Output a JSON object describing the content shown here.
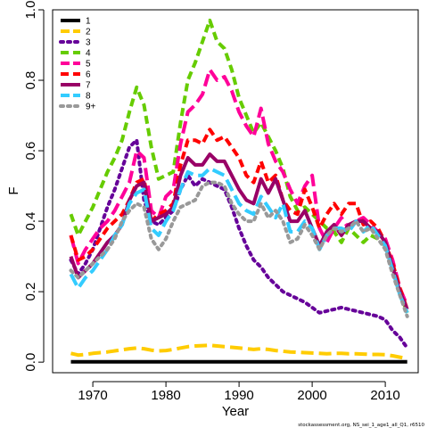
{
  "chart_data": {
    "type": "line",
    "title": "",
    "xlabel": "Year",
    "ylabel": "F",
    "xlim": [
      1964.5,
      2014.5
    ],
    "ylim": [
      -0.03,
      1.0
    ],
    "x_ticks": [
      1970,
      1980,
      1990,
      2000,
      2010
    ],
    "x_tick_labels": [
      "1970",
      "1980",
      "1990",
      "2000",
      "2010"
    ],
    "y_ticks": [
      0.0,
      0.2,
      0.4,
      0.6,
      0.8,
      1.0
    ],
    "y_tick_labels": [
      "0.0",
      "0.2",
      "0.4",
      "0.6",
      "0.8",
      "1.0"
    ],
    "grid": false,
    "legend_position": "top-left",
    "footnote": "stockassessment.org, NS_sei_1_age1_all_Q1, r6510",
    "x": [
      1967,
      1968,
      1969,
      1970,
      1971,
      1972,
      1973,
      1974,
      1975,
      1976,
      1977,
      1978,
      1979,
      1980,
      1981,
      1982,
      1983,
      1984,
      1985,
      1986,
      1987,
      1988,
      1989,
      1990,
      1991,
      1992,
      1993,
      1994,
      1995,
      1996,
      1997,
      1998,
      1999,
      2000,
      2001,
      2002,
      2003,
      2004,
      2005,
      2006,
      2007,
      2008,
      2009,
      2010,
      2011,
      2012,
      2013
    ],
    "series": [
      {
        "name": "1",
        "color": "#000000",
        "dash": "solid",
        "values": [
          0.001,
          0.001,
          0.001,
          0.001,
          0.001,
          0.001,
          0.001,
          0.001,
          0.001,
          0.001,
          0.001,
          0.001,
          0.001,
          0.001,
          0.001,
          0.001,
          0.001,
          0.001,
          0.001,
          0.001,
          0.001,
          0.001,
          0.001,
          0.001,
          0.001,
          0.001,
          0.001,
          0.001,
          0.001,
          0.001,
          0.001,
          0.001,
          0.001,
          0.001,
          0.001,
          0.001,
          0.001,
          0.001,
          0.001,
          0.001,
          0.001,
          0.001,
          0.001,
          0.001,
          0.001,
          0.001,
          0.001
        ]
      },
      {
        "name": "2",
        "color": "#FFCC00",
        "dash": "long",
        "values": [
          0.025,
          0.02,
          0.022,
          0.025,
          0.027,
          0.029,
          0.032,
          0.035,
          0.038,
          0.04,
          0.038,
          0.034,
          0.032,
          0.033,
          0.036,
          0.04,
          0.044,
          0.046,
          0.047,
          0.048,
          0.046,
          0.044,
          0.042,
          0.04,
          0.038,
          0.036,
          0.038,
          0.036,
          0.033,
          0.031,
          0.029,
          0.028,
          0.027,
          0.026,
          0.025,
          0.024,
          0.025,
          0.025,
          0.024,
          0.024,
          0.023,
          0.022,
          0.022,
          0.021,
          0.018,
          0.014,
          0.01
        ]
      },
      {
        "name": "3",
        "color": "#660099",
        "dash": "dotted",
        "values": [
          0.29,
          0.25,
          0.28,
          0.32,
          0.38,
          0.44,
          0.49,
          0.55,
          0.61,
          0.63,
          0.46,
          0.4,
          0.39,
          0.41,
          0.43,
          0.49,
          0.53,
          0.5,
          0.52,
          0.51,
          0.5,
          0.49,
          0.44,
          0.38,
          0.33,
          0.29,
          0.27,
          0.24,
          0.22,
          0.2,
          0.19,
          0.18,
          0.17,
          0.155,
          0.14,
          0.145,
          0.15,
          0.155,
          0.15,
          0.145,
          0.14,
          0.135,
          0.13,
          0.12,
          0.09,
          0.07,
          0.04
        ]
      },
      {
        "name": "4",
        "color": "#66CC00",
        "dash": "dashed",
        "values": [
          0.42,
          0.36,
          0.4,
          0.44,
          0.49,
          0.54,
          0.58,
          0.63,
          0.71,
          0.78,
          0.73,
          0.61,
          0.52,
          0.53,
          0.54,
          0.68,
          0.8,
          0.85,
          0.91,
          0.97,
          0.91,
          0.89,
          0.83,
          0.75,
          0.7,
          0.65,
          0.68,
          0.64,
          0.6,
          0.55,
          0.47,
          0.43,
          0.44,
          0.42,
          0.4,
          0.38,
          0.37,
          0.34,
          0.38,
          0.36,
          0.34,
          0.36,
          0.35,
          0.33,
          0.28,
          0.2,
          0.14
        ]
      },
      {
        "name": "5",
        "color": "#FF0099",
        "dash": "long",
        "values": [
          0.36,
          0.28,
          0.32,
          0.35,
          0.38,
          0.4,
          0.43,
          0.47,
          0.51,
          0.6,
          0.58,
          0.43,
          0.41,
          0.47,
          0.49,
          0.62,
          0.71,
          0.73,
          0.76,
          0.83,
          0.8,
          0.81,
          0.77,
          0.71,
          0.67,
          0.64,
          0.72,
          0.62,
          0.57,
          0.54,
          0.49,
          0.45,
          0.5,
          0.53,
          0.38,
          0.34,
          0.38,
          0.41,
          0.38,
          0.4,
          0.41,
          0.39,
          0.37,
          0.35,
          0.29,
          0.21,
          0.16
        ]
      },
      {
        "name": "6",
        "color": "#FF0000",
        "dash": "dashed",
        "values": [
          0.36,
          0.29,
          0.3,
          0.32,
          0.35,
          0.38,
          0.4,
          0.42,
          0.46,
          0.51,
          0.52,
          0.4,
          0.42,
          0.43,
          0.45,
          0.56,
          0.63,
          0.63,
          0.62,
          0.66,
          0.63,
          0.64,
          0.61,
          0.58,
          0.53,
          0.51,
          0.57,
          0.51,
          0.53,
          0.46,
          0.43,
          0.42,
          0.49,
          0.44,
          0.38,
          0.42,
          0.45,
          0.42,
          0.45,
          0.45,
          0.39,
          0.4,
          0.38,
          0.34,
          0.28,
          0.21,
          0.15
        ]
      },
      {
        "name": "7",
        "color": "#990066",
        "dash": "solid",
        "values": [
          0.3,
          0.24,
          0.26,
          0.28,
          0.31,
          0.34,
          0.36,
          0.39,
          0.46,
          0.5,
          0.51,
          0.4,
          0.41,
          0.42,
          0.44,
          0.53,
          0.58,
          0.56,
          0.56,
          0.59,
          0.57,
          0.57,
          0.53,
          0.49,
          0.46,
          0.45,
          0.52,
          0.48,
          0.52,
          0.46,
          0.4,
          0.4,
          0.43,
          0.38,
          0.33,
          0.37,
          0.39,
          0.36,
          0.39,
          0.4,
          0.4,
          0.38,
          0.37,
          0.34,
          0.27,
          0.2,
          0.15
        ]
      },
      {
        "name": "8",
        "color": "#33CCFF",
        "dash": "long",
        "values": [
          0.25,
          0.21,
          0.24,
          0.26,
          0.29,
          0.32,
          0.36,
          0.39,
          0.45,
          0.48,
          0.49,
          0.38,
          0.36,
          0.4,
          0.43,
          0.49,
          0.54,
          0.53,
          0.53,
          0.55,
          0.54,
          0.53,
          0.49,
          0.45,
          0.43,
          0.42,
          0.47,
          0.44,
          0.41,
          0.45,
          0.37,
          0.37,
          0.4,
          0.38,
          0.32,
          0.36,
          0.38,
          0.38,
          0.37,
          0.4,
          0.37,
          0.39,
          0.36,
          0.33,
          0.26,
          0.19,
          0.14
        ]
      },
      {
        "name": "9+",
        "color": "#999999",
        "dash": "dotted",
        "values": [
          0.26,
          0.24,
          0.26,
          0.28,
          0.3,
          0.32,
          0.35,
          0.4,
          0.43,
          0.45,
          0.44,
          0.35,
          0.32,
          0.35,
          0.4,
          0.44,
          0.45,
          0.46,
          0.5,
          0.51,
          0.51,
          0.5,
          0.45,
          0.42,
          0.4,
          0.4,
          0.45,
          0.41,
          0.43,
          0.4,
          0.34,
          0.35,
          0.39,
          0.36,
          0.32,
          0.36,
          0.38,
          0.37,
          0.38,
          0.4,
          0.37,
          0.38,
          0.35,
          0.32,
          0.25,
          0.19,
          0.13
        ]
      }
    ]
  }
}
